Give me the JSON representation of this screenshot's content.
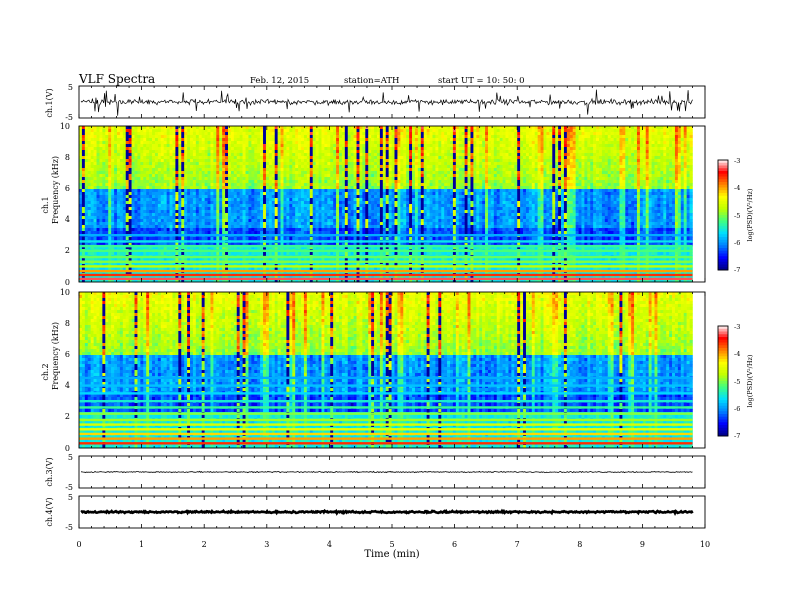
{
  "header": {
    "title": "VLF  Spectra",
    "date": "Feb. 12, 2015",
    "station": "station=ATH",
    "start": "start  UT  =    10: 50: 0"
  },
  "chart_data": [
    {
      "type": "line",
      "panel": "ch1-waveform",
      "ylabel": "ch.1(V)",
      "ylim": [
        -5,
        5
      ],
      "yticks": [
        "5",
        "-5"
      ],
      "series": [
        {
          "baseline": 0,
          "noise_amplitude": 1.2,
          "spike_amplitude": 3.5,
          "spike_count": 40
        }
      ]
    },
    {
      "type": "heatmap",
      "panel": "ch1-spectrogram",
      "ylabel_channel": "ch.1",
      "ylabel": "Frequency  (kHz)",
      "ylim": [
        0,
        10
      ],
      "yticks": [
        "0",
        "2",
        "4",
        "6",
        "8",
        "10"
      ],
      "colorbar": {
        "label": "log(PSD)(V²/Hz)",
        "range": [
          -7,
          -3
        ],
        "ticks": [
          "-3",
          "-4",
          "-5",
          "-6",
          "-7"
        ]
      },
      "bands_khz": [
        0.2,
        0.45,
        0.7,
        1.0,
        1.3,
        1.6,
        2.0,
        2.3,
        2.6,
        3.0
      ],
      "low_band_level": [
        -3.3,
        -3.6,
        -4.0,
        -4.8,
        -5.0,
        -5.1,
        -5.2,
        -5.3,
        -5.6,
        -5.9
      ]
    },
    {
      "type": "heatmap",
      "panel": "ch2-spectrogram",
      "ylabel_channel": "ch.2",
      "ylabel": "Frequency  (kHz)",
      "ylim": [
        0,
        10
      ],
      "yticks": [
        "0",
        "2",
        "4",
        "6",
        "8",
        "10"
      ],
      "colorbar": {
        "label": "log(PSD)(V²/Hz)",
        "range": [
          -7,
          -3
        ],
        "ticks": [
          "-3",
          "-4",
          "-5",
          "-6",
          "-7"
        ]
      },
      "bands_khz": [
        0.3,
        0.6,
        0.9,
        1.2,
        1.5,
        1.8,
        2.2,
        2.6,
        3.0,
        3.5,
        4.0,
        4.5
      ],
      "low_band_level": [
        -3.6,
        -4.0,
        -4.2,
        -4.5,
        -4.6,
        -4.9,
        -5.0,
        -5.3,
        -5.5,
        -5.7,
        -5.8,
        -5.9
      ]
    },
    {
      "type": "line",
      "panel": "ch3-waveform",
      "ylabel": "ch.3(V)",
      "ylim": [
        -5,
        5
      ],
      "yticks": [
        "5",
        "-5"
      ],
      "series": [
        {
          "baseline": 0,
          "noise_amplitude": 0.25
        }
      ]
    },
    {
      "type": "line",
      "panel": "ch4-waveform",
      "ylabel": "ch.4(V)",
      "ylim": [
        -5,
        5
      ],
      "yticks": [
        "5",
        "-5"
      ],
      "series": [
        {
          "baseline": 0,
          "noise_amplitude": 0.4
        }
      ]
    }
  ],
  "x_axis": {
    "label": "Time  (min)",
    "xlim": [
      0,
      10
    ],
    "ticks": [
      "0",
      "1",
      "2",
      "3",
      "4",
      "5",
      "6",
      "7",
      "8",
      "9",
      "10"
    ],
    "data_end": 9.8
  },
  "colors": {
    "scale": [
      "#000080",
      "#0000ff",
      "#0080ff",
      "#00e0ff",
      "#40ff80",
      "#c0ff00",
      "#ffff00",
      "#ff8000",
      "#ff0000",
      "#ffffff"
    ]
  }
}
